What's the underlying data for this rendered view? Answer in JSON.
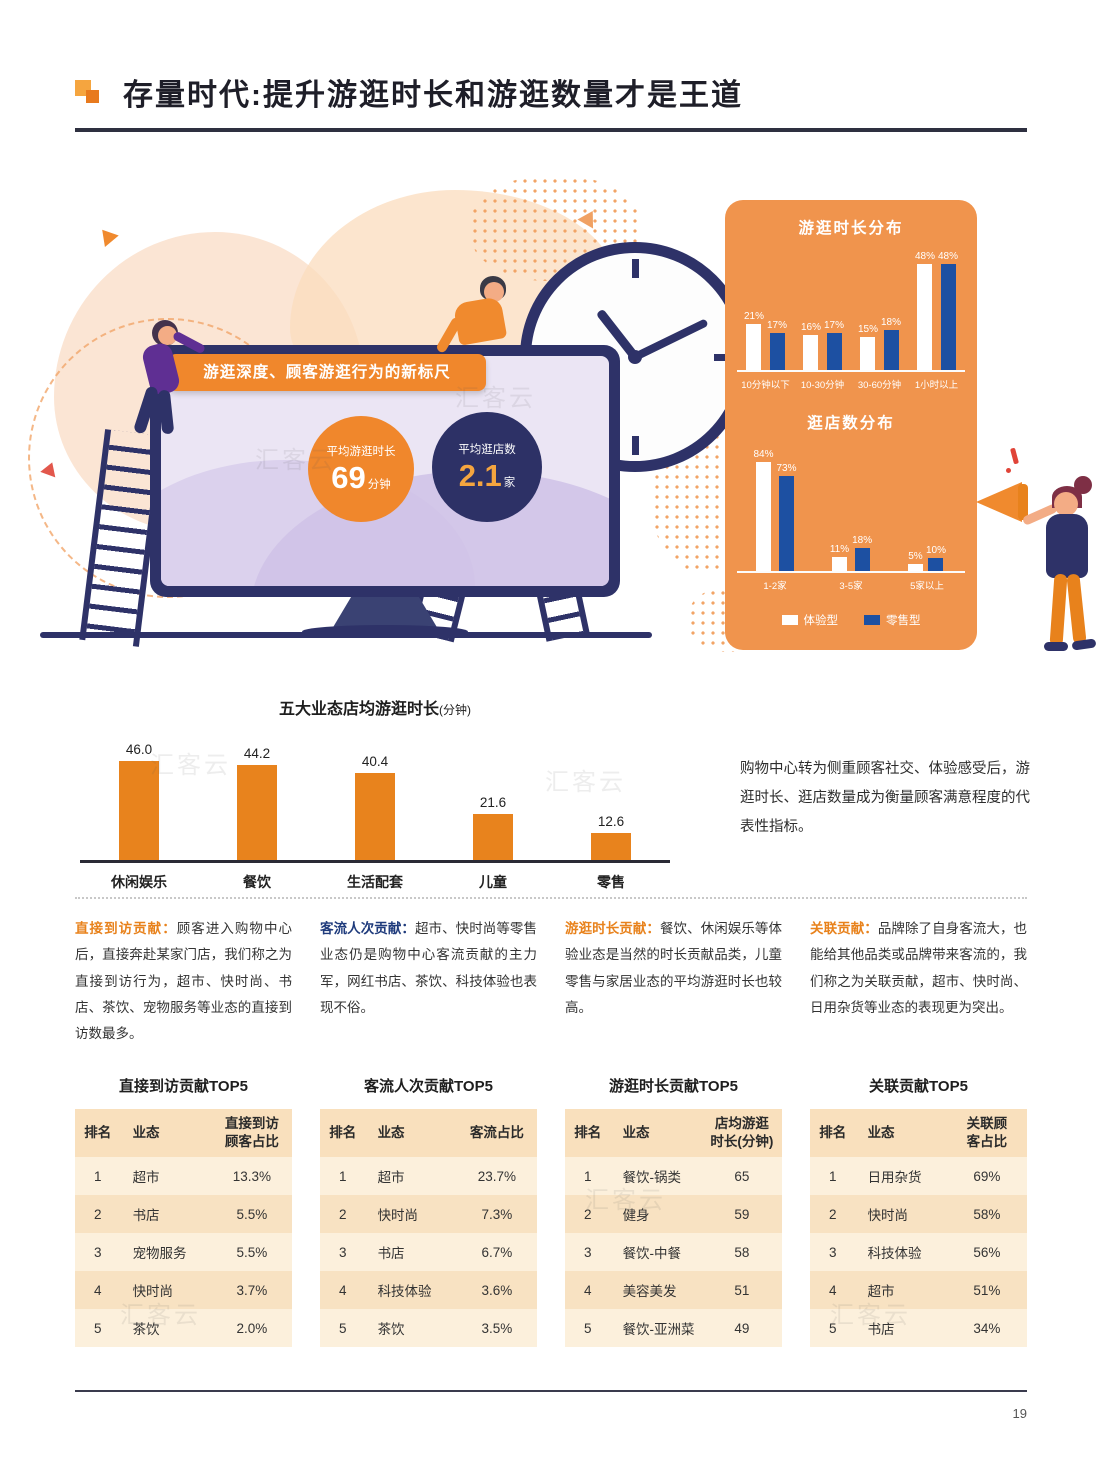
{
  "watermark": "汇客云",
  "header": {
    "title": "存量时代:提升游逛时长和游逛数量才是王道"
  },
  "hero": {
    "banner": "游逛深度、顾客游逛行为的新标尺",
    "stats": [
      {
        "label": "平均游逛时长",
        "value": "69",
        "unit": "分钟"
      },
      {
        "label": "平均逛店数",
        "value": "2.1",
        "unit": "家"
      }
    ]
  },
  "insight_text": "购物中心转为侧重顾客社交、体验感受后，游逛时长、逛店数量成为衡量顾客满意程度的代表性指标。",
  "columns": [
    {
      "lead": "直接到访贡献：",
      "lead_color": "#E8821C",
      "text": "顾客进入购物中心后，直接奔赴某家门店，我们称之为直接到访行为，超市、快时尚、书店、茶饮、宠物服务等业态的直接到访数最多。"
    },
    {
      "lead": "客流人次贡献：",
      "lead_color": "#1F3B7C",
      "text": "超市、快时尚等零售业态仍是购物中心客流贡献的主力军，网红书店、茶饮、科技体验也表现不俗。"
    },
    {
      "lead": "游逛时长贡献：",
      "lead_color": "#E8821C",
      "text": "餐饮、休闲娱乐等体验业态是当然的时长贡献品类，儿童零售与家居业态的平均游逛时长也较高。"
    },
    {
      "lead": "关联贡献：",
      "lead_color": "#E8821C",
      "text": "品牌除了自身客流大，也能给其他品类或品牌带来客流的，我们称之为关联贡献，超市、快时尚、日用杂货等业态的表现更为突出。"
    }
  ],
  "tables": [
    {
      "title": "直接到访贡献TOP5",
      "headers": [
        "排名",
        "业态",
        "直接到访\n顾客占比"
      ],
      "rows": [
        [
          "1",
          "超市",
          "13.3%"
        ],
        [
          "2",
          "书店",
          "5.5%"
        ],
        [
          "3",
          "宠物服务",
          "5.5%"
        ],
        [
          "4",
          "快时尚",
          "3.7%"
        ],
        [
          "5",
          "茶饮",
          "2.0%"
        ]
      ]
    },
    {
      "title": "客流人次贡献TOP5",
      "headers": [
        "排名",
        "业态",
        "客流占比"
      ],
      "rows": [
        [
          "1",
          "超市",
          "23.7%"
        ],
        [
          "2",
          "快时尚",
          "7.3%"
        ],
        [
          "3",
          "书店",
          "6.7%"
        ],
        [
          "4",
          "科技体验",
          "3.6%"
        ],
        [
          "5",
          "茶饮",
          "3.5%"
        ]
      ]
    },
    {
      "title": "游逛时长贡献TOP5",
      "headers": [
        "排名",
        "业态",
        "店均游逛\n时长(分钟)"
      ],
      "rows": [
        [
          "1",
          "餐饮-锅类",
          "65"
        ],
        [
          "2",
          "健身",
          "59"
        ],
        [
          "3",
          "餐饮-中餐",
          "58"
        ],
        [
          "4",
          "美容美发",
          "51"
        ],
        [
          "5",
          "餐饮-亚洲菜",
          "49"
        ]
      ]
    },
    {
      "title": "关联贡献TOP5",
      "headers": [
        "排名",
        "业态",
        "关联顾\n客占比"
      ],
      "rows": [
        [
          "1",
          "日用杂货",
          "69%"
        ],
        [
          "2",
          "快时尚",
          "58%"
        ],
        [
          "3",
          "科技体验",
          "56%"
        ],
        [
          "4",
          "超市",
          "51%"
        ],
        [
          "5",
          "书店",
          "34%"
        ]
      ]
    }
  ],
  "chart_data": [
    {
      "id": "visit-duration-distribution",
      "type": "bar",
      "title": "游逛时长分布",
      "categories": [
        "10分钟以下",
        "10-30分钟",
        "30-60分钟",
        "1小时以上"
      ],
      "series": [
        {
          "name": "体验型",
          "color": "#FFFFFF",
          "values": [
            21,
            16,
            15,
            48
          ]
        },
        {
          "name": "零售型",
          "color": "#1D50A2",
          "values": [
            17,
            17,
            18,
            48
          ]
        }
      ],
      "unit": "%",
      "ylim": [
        0,
        50
      ],
      "legend_position": "bottom"
    },
    {
      "id": "stores-visited-distribution",
      "type": "bar",
      "title": "逛店数分布",
      "categories": [
        "1-2家",
        "3-5家",
        "5家以上"
      ],
      "series": [
        {
          "name": "体验型",
          "color": "#FFFFFF",
          "values": [
            84,
            11,
            5
          ]
        },
        {
          "name": "零售型",
          "color": "#1D50A2",
          "values": [
            73,
            18,
            10
          ]
        }
      ],
      "unit": "%",
      "ylim": [
        0,
        90
      ],
      "legend_position": "bottom"
    },
    {
      "id": "avg-visit-duration-by-format",
      "type": "bar",
      "title": "五大业态店均游逛时长",
      "title_unit": "(分钟)",
      "categories": [
        "休闲娱乐",
        "餐饮",
        "生活配套",
        "儿童",
        "零售"
      ],
      "values": [
        46.0,
        44.2,
        40.4,
        21.6,
        12.6
      ],
      "bar_color": "#E8831D",
      "ylim": [
        0,
        50
      ]
    }
  ],
  "footer": {
    "page_number": "19"
  }
}
